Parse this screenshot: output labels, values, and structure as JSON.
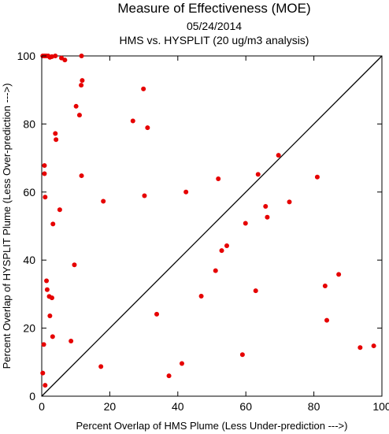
{
  "chart_data": {
    "type": "scatter",
    "title": "Measure of Effectiveness (MOE)",
    "subtitle": "05/24/2014",
    "subtitle2": "HMS vs. HYSPLIT  (20 ug/m3 analysis)",
    "xlabel": "Percent Overlap of HMS Plume (Less Under-prediction --->)",
    "ylabel": "Percent Overlap of HYSPLIT Plume (Less Over-prediction --->)",
    "xlim": [
      0,
      100
    ],
    "ylim": [
      0,
      100
    ],
    "xticks": [
      0,
      20,
      40,
      60,
      80,
      100
    ],
    "yticks": [
      0,
      20,
      40,
      60,
      80,
      100
    ],
    "grid": false,
    "reference_line": "y = x",
    "point_color": "#e60000",
    "line_color": "#000000",
    "points": [
      {
        "x": 0.3,
        "y": 100.0
      },
      {
        "x": 0.8,
        "y": 100.0
      },
      {
        "x": 1.3,
        "y": 100.0
      },
      {
        "x": 1.9,
        "y": 100.0
      },
      {
        "x": 2.4,
        "y": 99.6
      },
      {
        "x": 3.0,
        "y": 99.8
      },
      {
        "x": 4.0,
        "y": 100.0
      },
      {
        "x": 5.8,
        "y": 99.4
      },
      {
        "x": 6.8,
        "y": 98.8
      },
      {
        "x": 11.7,
        "y": 100.0
      },
      {
        "x": 10.1,
        "y": 85.2
      },
      {
        "x": 11.1,
        "y": 82.6
      },
      {
        "x": 11.6,
        "y": 91.4
      },
      {
        "x": 11.9,
        "y": 92.8
      },
      {
        "x": 4.0,
        "y": 77.2
      },
      {
        "x": 4.2,
        "y": 75.4
      },
      {
        "x": 0.8,
        "y": 67.8
      },
      {
        "x": 0.8,
        "y": 65.4
      },
      {
        "x": 11.7,
        "y": 64.8
      },
      {
        "x": 1.0,
        "y": 58.5
      },
      {
        "x": 5.3,
        "y": 54.8
      },
      {
        "x": 3.3,
        "y": 50.6
      },
      {
        "x": 9.6,
        "y": 38.6
      },
      {
        "x": 1.4,
        "y": 33.9
      },
      {
        "x": 1.6,
        "y": 31.3
      },
      {
        "x": 2.2,
        "y": 29.3
      },
      {
        "x": 3.0,
        "y": 28.9
      },
      {
        "x": 2.4,
        "y": 23.6
      },
      {
        "x": 3.2,
        "y": 17.5
      },
      {
        "x": 8.6,
        "y": 16.2
      },
      {
        "x": 0.6,
        "y": 15.2
      },
      {
        "x": 0.3,
        "y": 6.8
      },
      {
        "x": 1.0,
        "y": 3.2
      },
      {
        "x": 18.1,
        "y": 57.3
      },
      {
        "x": 17.4,
        "y": 8.7
      },
      {
        "x": 26.8,
        "y": 80.9
      },
      {
        "x": 29.9,
        "y": 90.3
      },
      {
        "x": 30.2,
        "y": 58.9
      },
      {
        "x": 31.1,
        "y": 78.9
      },
      {
        "x": 33.8,
        "y": 24.1
      },
      {
        "x": 37.4,
        "y": 6.0
      },
      {
        "x": 41.2,
        "y": 9.6
      },
      {
        "x": 42.4,
        "y": 60.0
      },
      {
        "x": 46.9,
        "y": 29.4
      },
      {
        "x": 51.1,
        "y": 36.9
      },
      {
        "x": 51.9,
        "y": 63.9
      },
      {
        "x": 52.9,
        "y": 42.8
      },
      {
        "x": 54.4,
        "y": 44.2
      },
      {
        "x": 59.0,
        "y": 12.2
      },
      {
        "x": 59.9,
        "y": 50.8
      },
      {
        "x": 62.9,
        "y": 31.0
      },
      {
        "x": 63.6,
        "y": 65.2
      },
      {
        "x": 65.8,
        "y": 55.8
      },
      {
        "x": 66.3,
        "y": 52.6
      },
      {
        "x": 69.6,
        "y": 70.8
      },
      {
        "x": 72.8,
        "y": 57.1
      },
      {
        "x": 81.0,
        "y": 64.4
      },
      {
        "x": 83.3,
        "y": 32.4
      },
      {
        "x": 83.8,
        "y": 22.3
      },
      {
        "x": 87.3,
        "y": 35.8
      },
      {
        "x": 93.6,
        "y": 14.3
      },
      {
        "x": 97.6,
        "y": 14.8
      }
    ]
  }
}
